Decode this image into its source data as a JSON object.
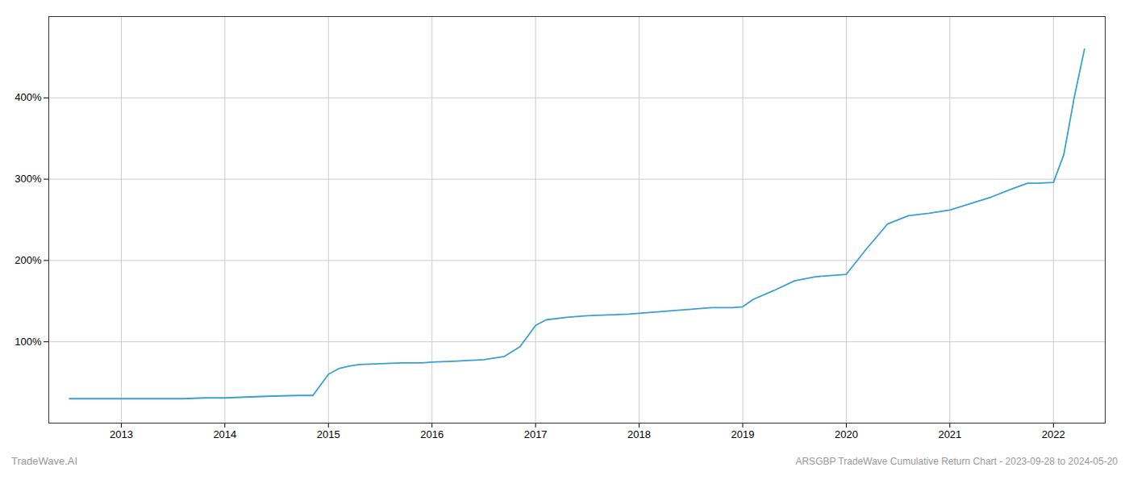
{
  "chart_data": {
    "type": "line",
    "title": "ARSGBP TradeWave Cumulative Return Chart - 2023-09-28 to 2024-05-20",
    "annotations": [
      "TradeWave.AI"
    ],
    "color": "#3a9fd1",
    "grid": true,
    "x": [
      2012.5,
      2013.0,
      2013.2,
      2013.4,
      2013.6,
      2013.8,
      2014.0,
      2014.2,
      2014.4,
      2014.7,
      2014.85,
      2015.0,
      2015.1,
      2015.2,
      2015.3,
      2015.5,
      2015.7,
      2015.9,
      2016.0,
      2016.2,
      2016.5,
      2016.7,
      2016.85,
      2017.0,
      2017.1,
      2017.3,
      2017.5,
      2017.7,
      2017.9,
      2018.0,
      2018.2,
      2018.5,
      2018.7,
      2018.9,
      2019.0,
      2019.1,
      2019.3,
      2019.5,
      2019.7,
      2019.9,
      2020.0,
      2020.2,
      2020.4,
      2020.6,
      2020.8,
      2021.0,
      2021.2,
      2021.4,
      2021.6,
      2021.75,
      2021.85,
      2022.0,
      2022.1,
      2022.2,
      2022.3
    ],
    "values": [
      30,
      30,
      30,
      30,
      30,
      31,
      31,
      32,
      33,
      34,
      34,
      60,
      67,
      70,
      72,
      73,
      74,
      74,
      75,
      76,
      78,
      82,
      94,
      120,
      127,
      130,
      132,
      133,
      134,
      135,
      137,
      140,
      142,
      142,
      143,
      152,
      163,
      175,
      180,
      182,
      183,
      215,
      245,
      255,
      258,
      262,
      270,
      278,
      288,
      295,
      295,
      296,
      330,
      400,
      460
    ],
    "xlim": [
      2012.3,
      2022.5
    ],
    "xticks": [
      2013,
      2014,
      2015,
      2016,
      2017,
      2018,
      2019,
      2020,
      2021,
      2022
    ],
    "ylim": [
      0,
      500
    ],
    "yticks": [
      {
        "value": 100,
        "label": "100%"
      },
      {
        "value": 200,
        "label": "200%"
      },
      {
        "value": 300,
        "label": "300%"
      },
      {
        "value": 400,
        "label": "400%"
      }
    ]
  }
}
